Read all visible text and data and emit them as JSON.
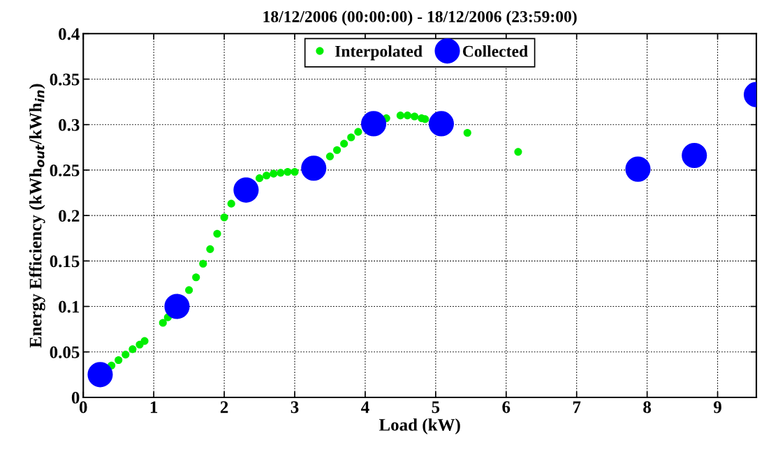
{
  "chart_data": {
    "type": "scatter",
    "title": "18/12/2006 (00:00:00) - 18/12/2006 (23:59:00)",
    "xlabel": "Load (kW)",
    "ylabel": "Energy Efficiency (kWh$_{out}$/kWh$_{in}$)",
    "xlim": [
      0,
      9.55
    ],
    "ylim": [
      0,
      0.4
    ],
    "xticks": [
      0,
      1,
      2,
      3,
      4,
      5,
      6,
      7,
      8,
      9
    ],
    "yticks": [
      0,
      0.05,
      0.1,
      0.15,
      0.2,
      0.25,
      0.3,
      0.35,
      0.4
    ],
    "grid": true,
    "legend": "top",
    "marker": "circle",
    "series": [
      {
        "name": "Interpolated",
        "color": "#00ee00",
        "x": [
          0.4,
          0.5,
          0.6,
          0.7,
          0.8,
          0.87,
          1.13,
          1.2,
          1.5,
          1.6,
          1.7,
          1.8,
          1.9,
          2.0,
          2.1,
          2.5,
          2.6,
          2.7,
          2.8,
          2.9,
          3.0,
          3.5,
          3.6,
          3.7,
          3.8,
          3.9,
          4.3,
          4.5,
          4.6,
          4.7,
          4.8,
          4.85,
          5.45,
          6.17
        ],
        "values": [
          0.035,
          0.041,
          0.047,
          0.053,
          0.058,
          0.062,
          0.082,
          0.088,
          0.118,
          0.132,
          0.147,
          0.163,
          0.18,
          0.198,
          0.213,
          0.241,
          0.244,
          0.246,
          0.247,
          0.248,
          0.248,
          0.265,
          0.272,
          0.279,
          0.286,
          0.292,
          0.307,
          0.31,
          0.31,
          0.309,
          0.307,
          0.306,
          0.291,
          0.27
        ]
      },
      {
        "name": "Collected",
        "color": "#0000ff",
        "x": [
          0.24,
          1.33,
          2.31,
          3.27,
          4.12,
          5.08,
          7.87,
          8.67,
          9.55
        ],
        "values": [
          0.025,
          0.1,
          0.228,
          0.252,
          0.301,
          0.301,
          0.251,
          0.266,
          0.333
        ]
      }
    ]
  }
}
